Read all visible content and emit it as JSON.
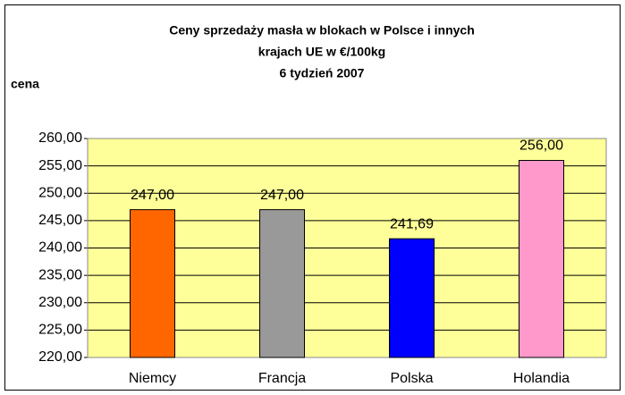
{
  "chart_data": {
    "type": "bar",
    "title": [
      "Ceny sprzedaży masła w blokach w Polsce i  innych",
      "krajach UE w €/100kg",
      "6 tydzień 2007"
    ],
    "y_label": "cena",
    "categories": [
      "Niemcy",
      "Francja",
      "Polska",
      "Holandia"
    ],
    "values": [
      247.0,
      247.0,
      241.69,
      256.0
    ],
    "value_labels": [
      "247,00",
      "247,00",
      "241,69",
      "256,00"
    ],
    "colors": [
      "#FF6600",
      "#999999",
      "#0000FF",
      "#FF99CC"
    ],
    "ylim": [
      220,
      260
    ],
    "yticks": [
      {
        "value": 220,
        "label": "220,00"
      },
      {
        "value": 225,
        "label": "225,00"
      },
      {
        "value": 230,
        "label": "230,00"
      },
      {
        "value": 235,
        "label": "235,00"
      },
      {
        "value": 240,
        "label": "240,00"
      },
      {
        "value": 245,
        "label": "245,00"
      },
      {
        "value": 250,
        "label": "250,00"
      },
      {
        "value": 255,
        "label": "255,00"
      },
      {
        "value": 260,
        "label": "260,00"
      }
    ],
    "grid": true
  }
}
